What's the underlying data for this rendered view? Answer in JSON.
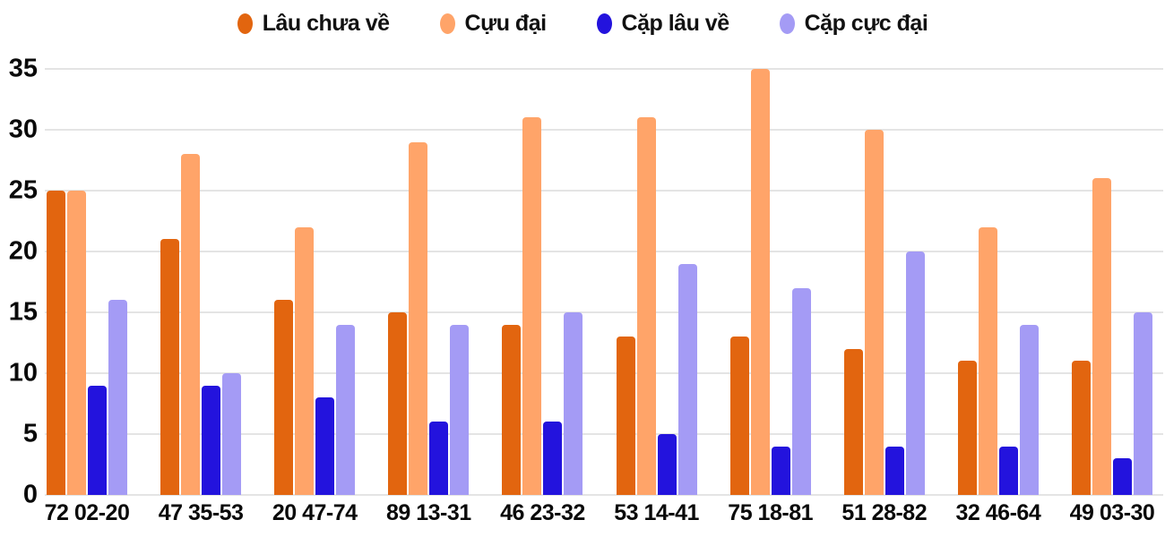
{
  "chart_data": {
    "type": "bar",
    "title": "",
    "xlabel": "",
    "ylabel": "",
    "ylim": [
      0,
      35
    ],
    "yticks": [
      0,
      5,
      10,
      15,
      20,
      25,
      30,
      35
    ],
    "grid": "horizontal",
    "legend_position": "top",
    "categories": [
      "72 02-20",
      "47 35-53",
      "20 47-74",
      "89 13-31",
      "46 23-32",
      "53 14-41",
      "75 18-81",
      "51 28-82",
      "32 46-64",
      "49 03-30"
    ],
    "series": [
      {
        "name": "Lâu chưa về",
        "color": "#e2650f",
        "values": [
          25,
          21,
          16,
          15,
          14,
          13,
          13,
          12,
          11,
          11
        ]
      },
      {
        "name": "Cựu đại",
        "color": "#ffa469",
        "values": [
          25,
          28,
          22,
          29,
          31,
          31,
          35,
          30,
          22,
          26
        ]
      },
      {
        "name": "Cặp lâu về",
        "color": "#2313dd",
        "values": [
          9,
          9,
          8,
          6,
          6,
          5,
          4,
          4,
          4,
          3
        ]
      },
      {
        "name": "Cặp cực đại",
        "color": "#a49bf5",
        "values": [
          16,
          10,
          14,
          14,
          15,
          19,
          17,
          20,
          14,
          15
        ]
      }
    ],
    "colors": {
      "background": "#ffffff",
      "gridline": "#e4e4e4",
      "text": "#0a0a0a"
    }
  }
}
